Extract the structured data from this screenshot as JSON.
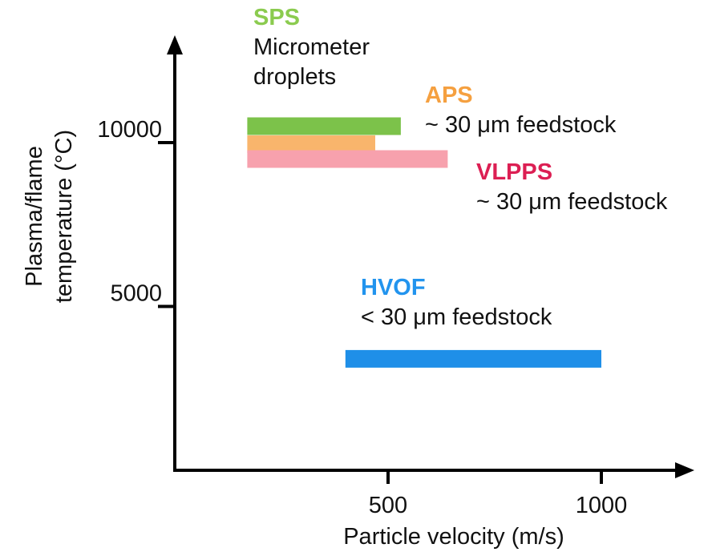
{
  "chart_data": {
    "type": "bar",
    "orientation": "horizontal-range",
    "xlabel": "Particle velocity (m/s)",
    "ylabel_lines": [
      "Plasma/flame",
      "temperature (°C)"
    ],
    "x_ticks": [
      500,
      1000
    ],
    "y_ticks": [
      5000,
      10000
    ],
    "x_range": [
      0,
      1200
    ],
    "y_range": [
      0,
      13500
    ],
    "grid": false,
    "series": [
      {
        "name": "SPS",
        "note_lines": [
          "Micrometer",
          "droplets"
        ],
        "color": "#7cc24a",
        "x_start": 170,
        "x_end": 530,
        "y": 10500
      },
      {
        "name": "APS",
        "note_lines": [
          "~ 30 μm feedstock"
        ],
        "color": "#f9b56c",
        "x_start": 170,
        "x_end": 470,
        "y": 9950
      },
      {
        "name": "VLPPS",
        "note_lines": [
          "~ 30 μm feedstock"
        ],
        "color": "#f7a1ad",
        "x_start": 170,
        "x_end": 640,
        "y": 9500
      },
      {
        "name": "HVOF",
        "note_lines": [
          "< 30 μm feedstock"
        ],
        "color": "#1f8fe8",
        "x_start": 400,
        "x_end": 1000,
        "y": 3400
      }
    ],
    "title_colors": {
      "SPS": "#8bcb4f",
      "APS": "#f5a040",
      "VLPPS": "#dc1f53",
      "HVOF": "#2294ee"
    }
  }
}
